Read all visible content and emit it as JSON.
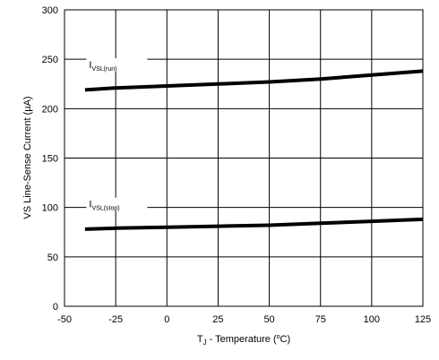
{
  "chart_data": {
    "type": "line",
    "xlabel": {
      "main": "T",
      "sub": "J",
      "rest": " - Temperature  (",
      "sup": "o",
      "unit": "C)"
    },
    "ylabel": "VS Line-Sense Current (µA)",
    "xlim": [
      -50,
      125
    ],
    "ylim": [
      0,
      300
    ],
    "xticks": [
      -50,
      -25,
      0,
      25,
      50,
      75,
      100,
      125
    ],
    "yticks": [
      0,
      50,
      100,
      150,
      200,
      250,
      300
    ],
    "xtick_labels": [
      "-50",
      "-25",
      "0",
      "25",
      "50",
      "75",
      "100",
      "125"
    ],
    "ytick_labels": [
      "0",
      "50",
      "100",
      "150",
      "200",
      "250",
      "300"
    ],
    "grid": true,
    "legend": "none",
    "series": [
      {
        "name": "I_VSL(run)",
        "label_main": "I",
        "label_sub": "VSL(run)",
        "color": "#000000",
        "x": [
          -40,
          -25,
          0,
          25,
          50,
          75,
          100,
          125
        ],
        "y": [
          219,
          221,
          223,
          225,
          227,
          230,
          234,
          238
        ]
      },
      {
        "name": "I_VSL(stop)",
        "label_main": "I",
        "label_sub": "VSL(stop)",
        "color": "#000000",
        "x": [
          -40,
          -25,
          0,
          25,
          50,
          75,
          100,
          125
        ],
        "y": [
          78,
          79,
          80,
          81,
          82,
          84,
          86,
          88
        ]
      }
    ]
  }
}
